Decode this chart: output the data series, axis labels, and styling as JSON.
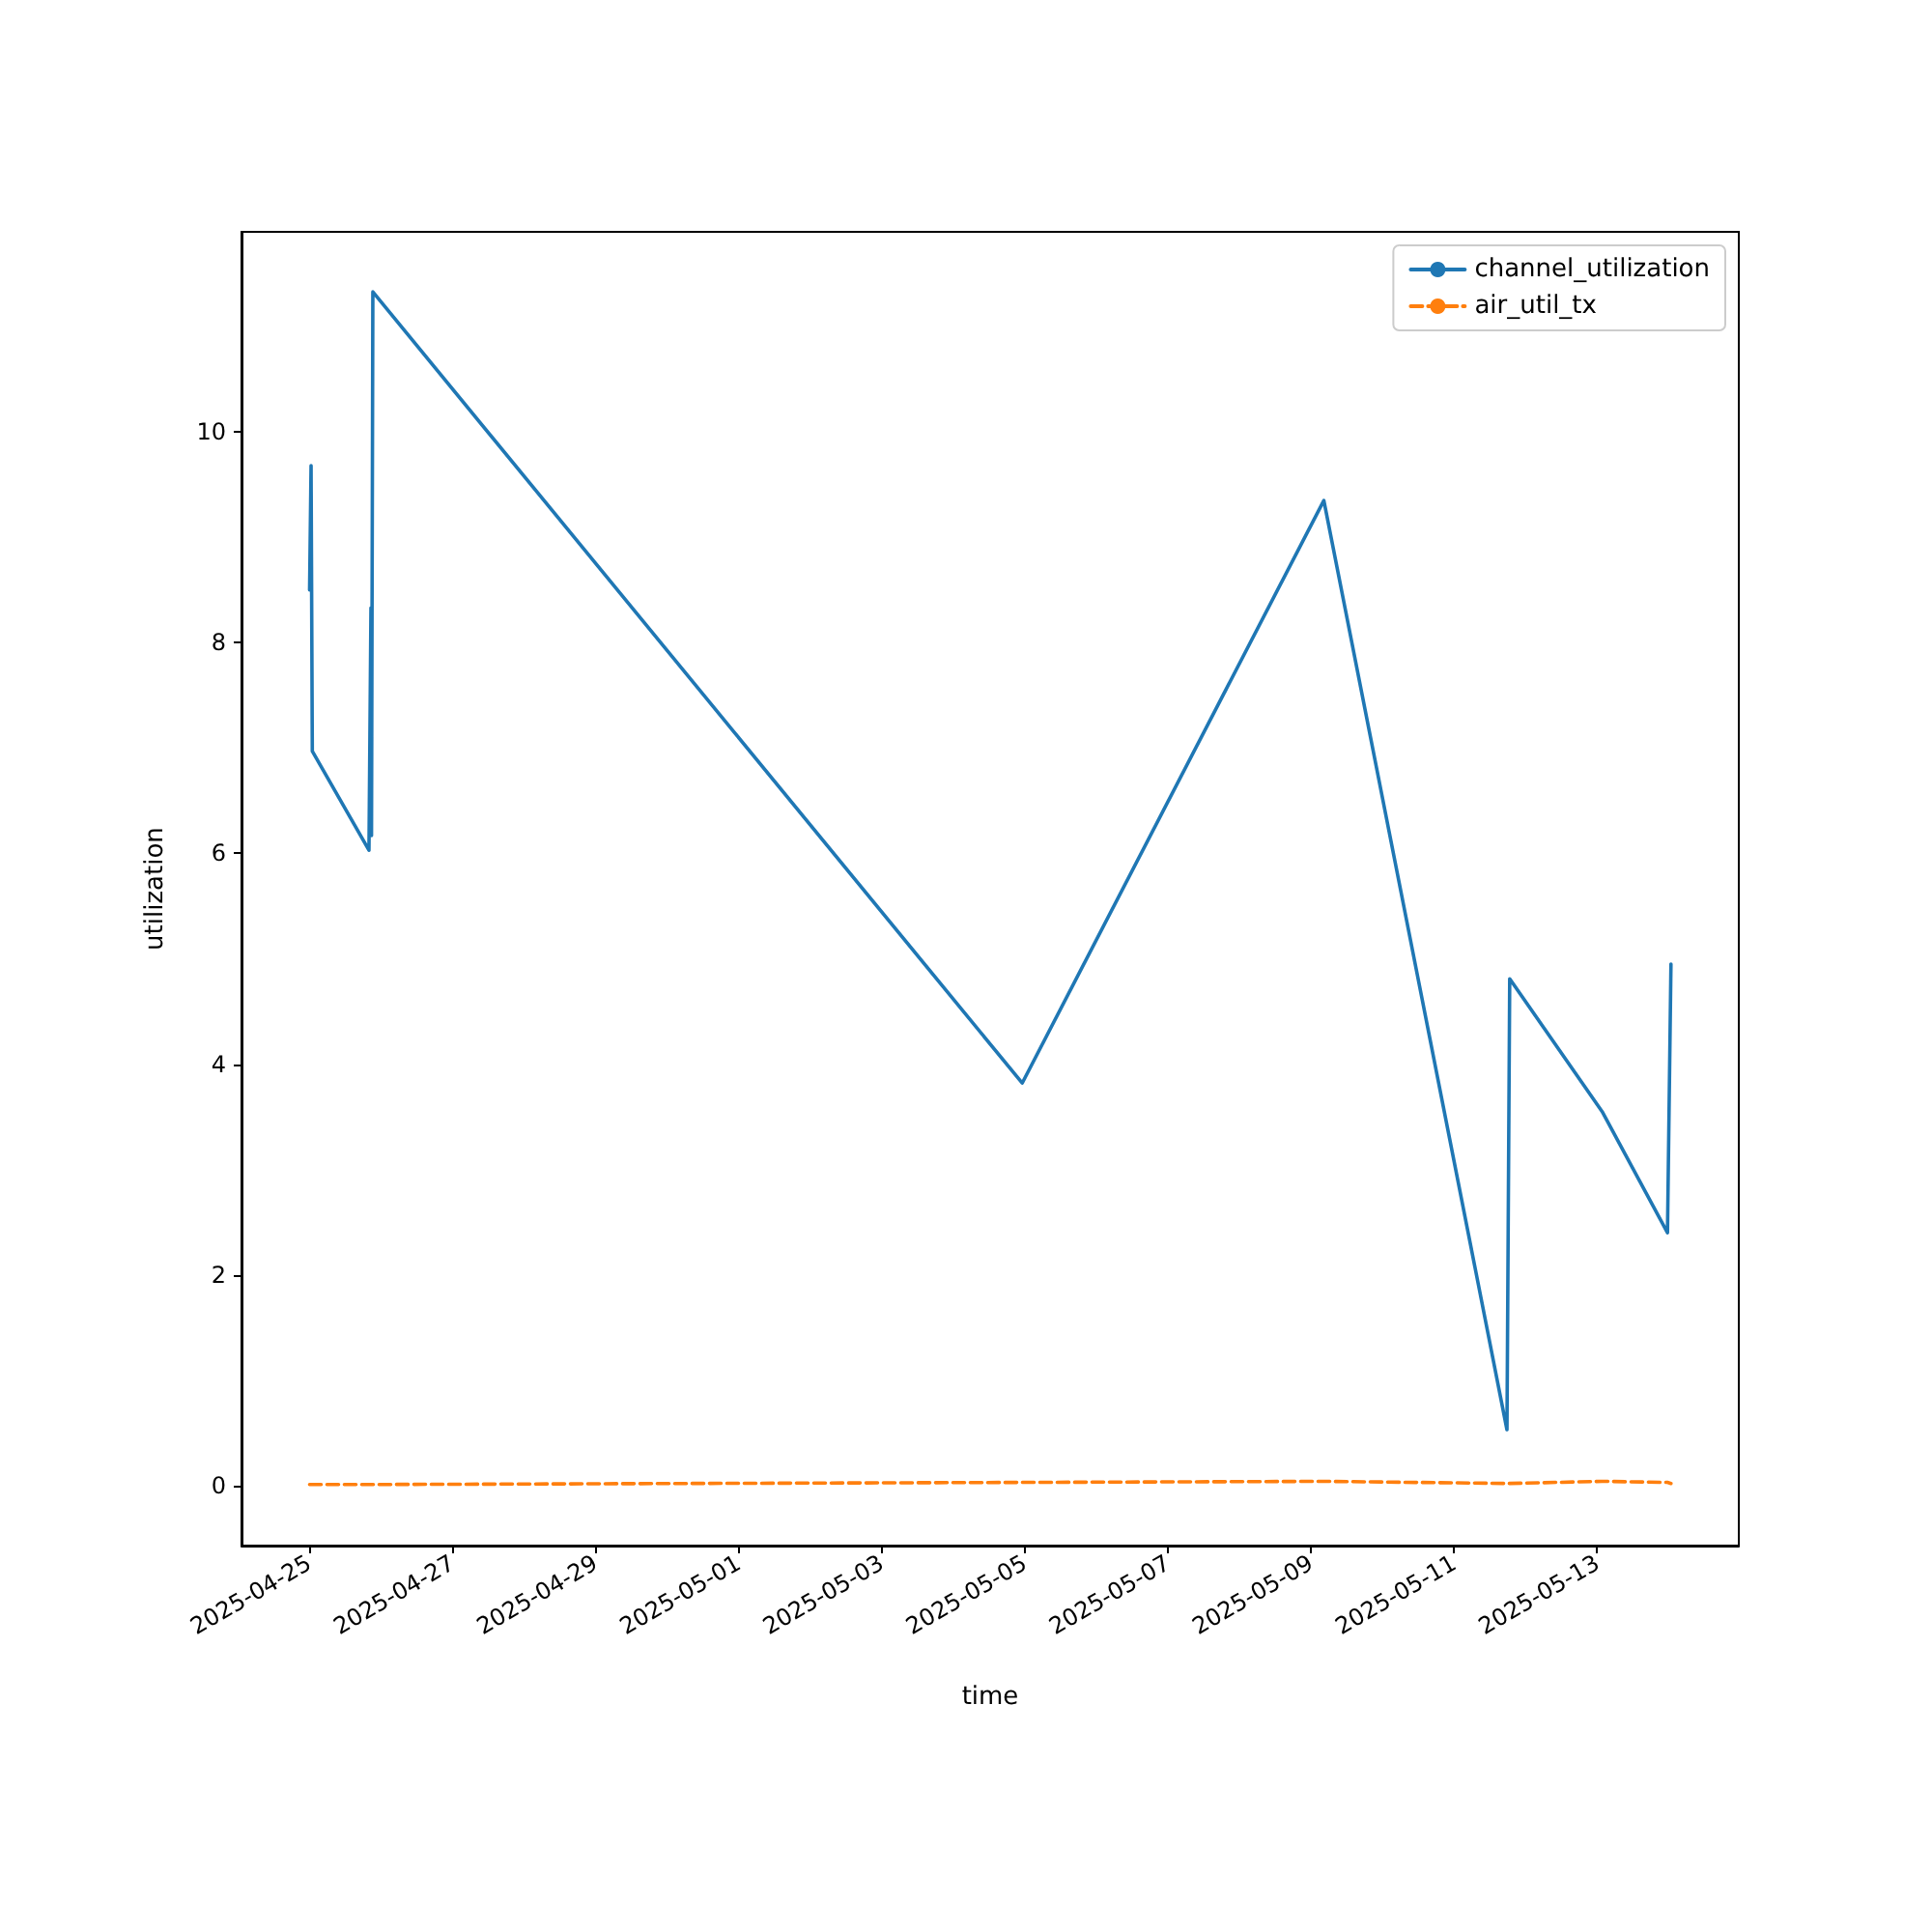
{
  "chart_data": {
    "type": "line",
    "xlabel": "time",
    "ylabel": "utilization",
    "xlim": [
      "2025-04-24T01:20",
      "2025-05-14T23:30"
    ],
    "ylim": [
      -0.57,
      11.9
    ],
    "xticks": [
      "2025-04-25",
      "2025-04-27",
      "2025-04-29",
      "2025-05-01",
      "2025-05-03",
      "2025-05-05",
      "2025-05-07",
      "2025-05-09",
      "2025-05-11",
      "2025-05-13"
    ],
    "yticks": [
      0,
      2,
      4,
      6,
      8,
      10
    ],
    "grid": false,
    "legend": "top right",
    "marker": "none",
    "x": [
      "2025-04-25T00:10",
      "2025-04-25T00:40",
      "2025-04-25T01:05",
      "2025-04-25T20:05",
      "2025-04-25T20:45",
      "2025-04-25T20:56",
      "2025-04-25T21:23",
      "2025-05-04T23:10",
      "2025-05-09T04:20",
      "2025-05-11T17:45",
      "2025-05-11T18:40",
      "2025-05-13T01:40",
      "2025-05-13T23:35",
      "2025-05-14T00:45"
    ],
    "series": [
      {
        "name": "channel_utilization",
        "color": "#1f77b4",
        "line_style": "solid",
        "values": [
          8.5,
          9.68,
          6.97,
          6.03,
          8.33,
          6.17,
          11.33,
          3.82,
          9.35,
          0.53,
          4.81,
          3.55,
          2.4,
          4.95
        ]
      },
      {
        "name": "air_util_tx",
        "color": "#ff7f0e",
        "line_style": "dashed",
        "values": [
          0.01,
          0.01,
          0.01,
          0.01,
          0.01,
          0.01,
          0.01,
          0.03,
          0.04,
          0.02,
          0.02,
          0.04,
          0.03,
          0.02
        ]
      }
    ]
  }
}
